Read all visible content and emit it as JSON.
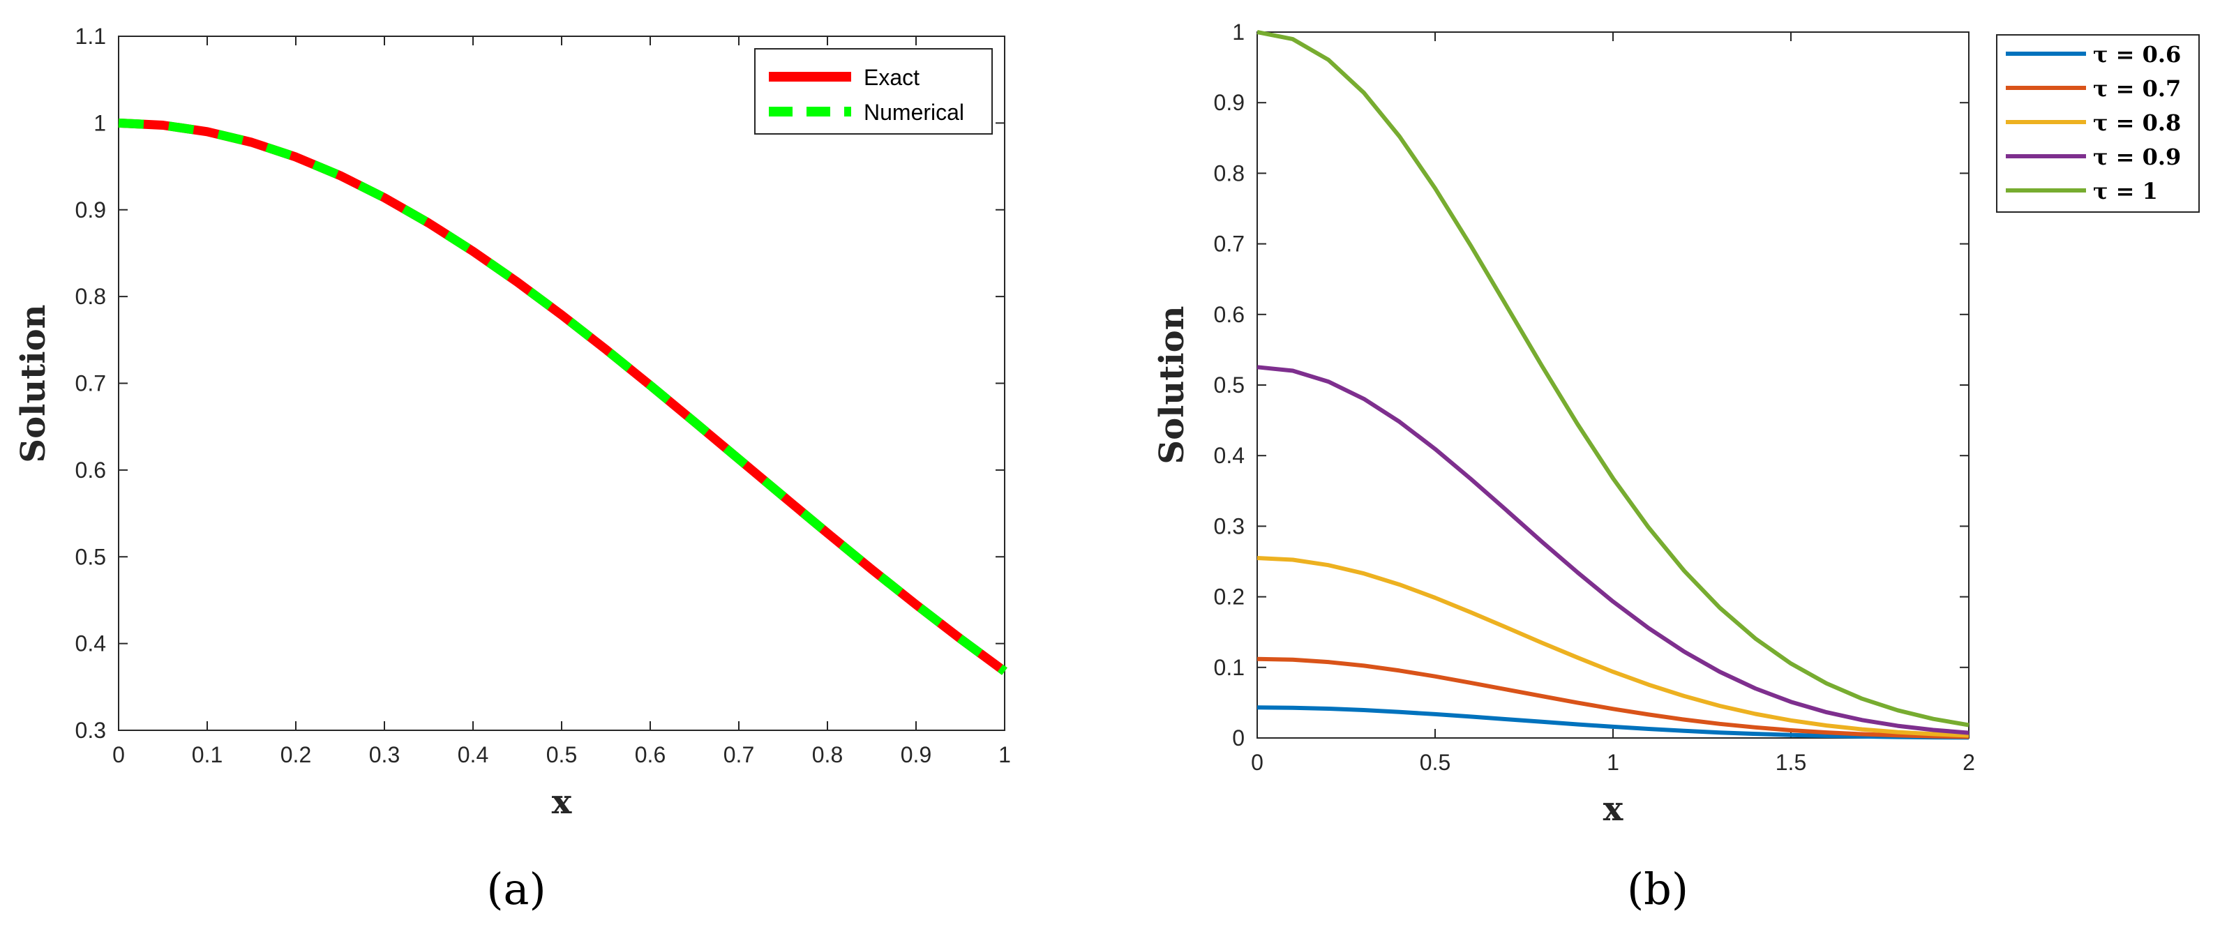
{
  "chart_data": [
    {
      "id": "a",
      "type": "line",
      "caption": "(a)",
      "xlabel": "x",
      "ylabel": "Solution",
      "xlim": [
        0,
        1
      ],
      "ylim": [
        0.3,
        1.1
      ],
      "xticks": [
        0,
        0.1,
        0.2,
        0.3,
        0.4,
        0.5,
        0.6,
        0.7,
        0.8,
        0.9,
        1
      ],
      "xtick_labels": [
        "0",
        "0.1",
        "0.2",
        "0.3",
        "0.4",
        "0.5",
        "0.6",
        "0.7",
        "0.8",
        "0.9",
        "1"
      ],
      "yticks": [
        0.3,
        0.4,
        0.5,
        0.6,
        0.7,
        0.8,
        0.9,
        1,
        1.1
      ],
      "ytick_labels": [
        "0.3",
        "0.4",
        "0.5",
        "0.6",
        "0.7",
        "0.8",
        "0.9",
        "1",
        "1.1"
      ],
      "legend": "top-right",
      "grid": false,
      "x": [
        0,
        0.05,
        0.1,
        0.15,
        0.2,
        0.25,
        0.3,
        0.35,
        0.4,
        0.45,
        0.5,
        0.55,
        0.6,
        0.65,
        0.7,
        0.75,
        0.8,
        0.85,
        0.9,
        0.95,
        1
      ],
      "series": [
        {
          "name": "Exact",
          "color": "#ff0000",
          "style": "solid",
          "values": [
            1,
            0.9975,
            0.99,
            0.9778,
            0.9608,
            0.9394,
            0.9139,
            0.8847,
            0.8521,
            0.8167,
            0.7788,
            0.739,
            0.6977,
            0.6554,
            0.6126,
            0.5698,
            0.5273,
            0.4855,
            0.4449,
            0.4056,
            0.3679
          ]
        },
        {
          "name": "Numerical",
          "color": "#00ff00",
          "style": "dashed",
          "values": [
            1,
            0.9975,
            0.99,
            0.9778,
            0.9608,
            0.9394,
            0.9139,
            0.8847,
            0.8521,
            0.8167,
            0.7788,
            0.739,
            0.6977,
            0.6554,
            0.6126,
            0.5698,
            0.5273,
            0.4855,
            0.4449,
            0.4056,
            0.3679
          ]
        }
      ]
    },
    {
      "id": "b",
      "type": "line",
      "caption": "(b)",
      "xlabel": "x",
      "ylabel": "Solution",
      "xlim": [
        0,
        2
      ],
      "ylim": [
        0,
        1
      ],
      "xticks": [
        0,
        0.5,
        1,
        1.5,
        2
      ],
      "xtick_labels": [
        "0",
        "0.5",
        "1",
        "1.5",
        "2"
      ],
      "yticks": [
        0,
        0.1,
        0.2,
        0.3,
        0.4,
        0.5,
        0.6,
        0.7,
        0.8,
        0.9,
        1
      ],
      "ytick_labels": [
        "0",
        "0.1",
        "0.2",
        "0.3",
        "0.4",
        "0.5",
        "0.6",
        "0.7",
        "0.8",
        "0.9",
        "1"
      ],
      "legend": "outside-top-right",
      "grid": false,
      "x": [
        0,
        0.1,
        0.2,
        0.3,
        0.4,
        0.5,
        0.6,
        0.7,
        0.8,
        0.9,
        1,
        1.1,
        1.2,
        1.3,
        1.4,
        1.5,
        1.6,
        1.7,
        1.8,
        1.9,
        2
      ],
      "series": [
        {
          "name": "τ = 0.6",
          "color": "#0072bd",
          "style": "solid",
          "values": [
            0.0432,
            0.0428,
            0.0415,
            0.0395,
            0.0368,
            0.0337,
            0.0302,
            0.0266,
            0.0229,
            0.0193,
            0.0159,
            0.0128,
            0.0101,
            0.0077,
            0.0058,
            0.0042,
            0.003,
            0.0021,
            0.0014,
            0.0009,
            0.0006
          ]
        },
        {
          "name": "τ = 0.7",
          "color": "#d95319",
          "style": "solid",
          "values": [
            0.112,
            0.111,
            0.1076,
            0.1024,
            0.0955,
            0.0873,
            0.0782,
            0.0688,
            0.0593,
            0.05,
            0.0412,
            0.0332,
            0.0261,
            0.02,
            0.015,
            0.0109,
            0.0078,
            0.0054,
            0.0037,
            0.0024,
            0.0016
          ]
        },
        {
          "name": "τ = 0.8",
          "color": "#edb120",
          "style": "solid",
          "values": [
            0.2549,
            0.2525,
            0.2449,
            0.233,
            0.2173,
            0.1986,
            0.1781,
            0.1566,
            0.1349,
            0.1139,
            0.0938,
            0.0755,
            0.0594,
            0.0455,
            0.0341,
            0.0249,
            0.0177,
            0.0123,
            0.0083,
            0.0055,
            0.0035
          ]
        },
        {
          "name": "τ = 0.9",
          "color": "#7e2f8e",
          "style": "solid",
          "values": [
            0.5254,
            0.5203,
            0.5048,
            0.4803,
            0.4479,
            0.4094,
            0.3671,
            0.3228,
            0.2781,
            0.2347,
            0.1933,
            0.1556,
            0.1223,
            0.0938,
            0.0702,
            0.0512,
            0.0365,
            0.0254,
            0.0172,
            0.0114,
            0.0073
          ]
        },
        {
          "name": "τ = 1",
          "color": "#77ac30",
          "style": "solid",
          "values": [
            1,
            0.99,
            0.9608,
            0.9139,
            0.8521,
            0.7788,
            0.6977,
            0.6126,
            0.5273,
            0.4449,
            0.3679,
            0.2982,
            0.2369,
            0.1845,
            0.1409,
            0.1054,
            0.0773,
            0.0556,
            0.0392,
            0.027,
            0.0183
          ]
        }
      ]
    }
  ]
}
